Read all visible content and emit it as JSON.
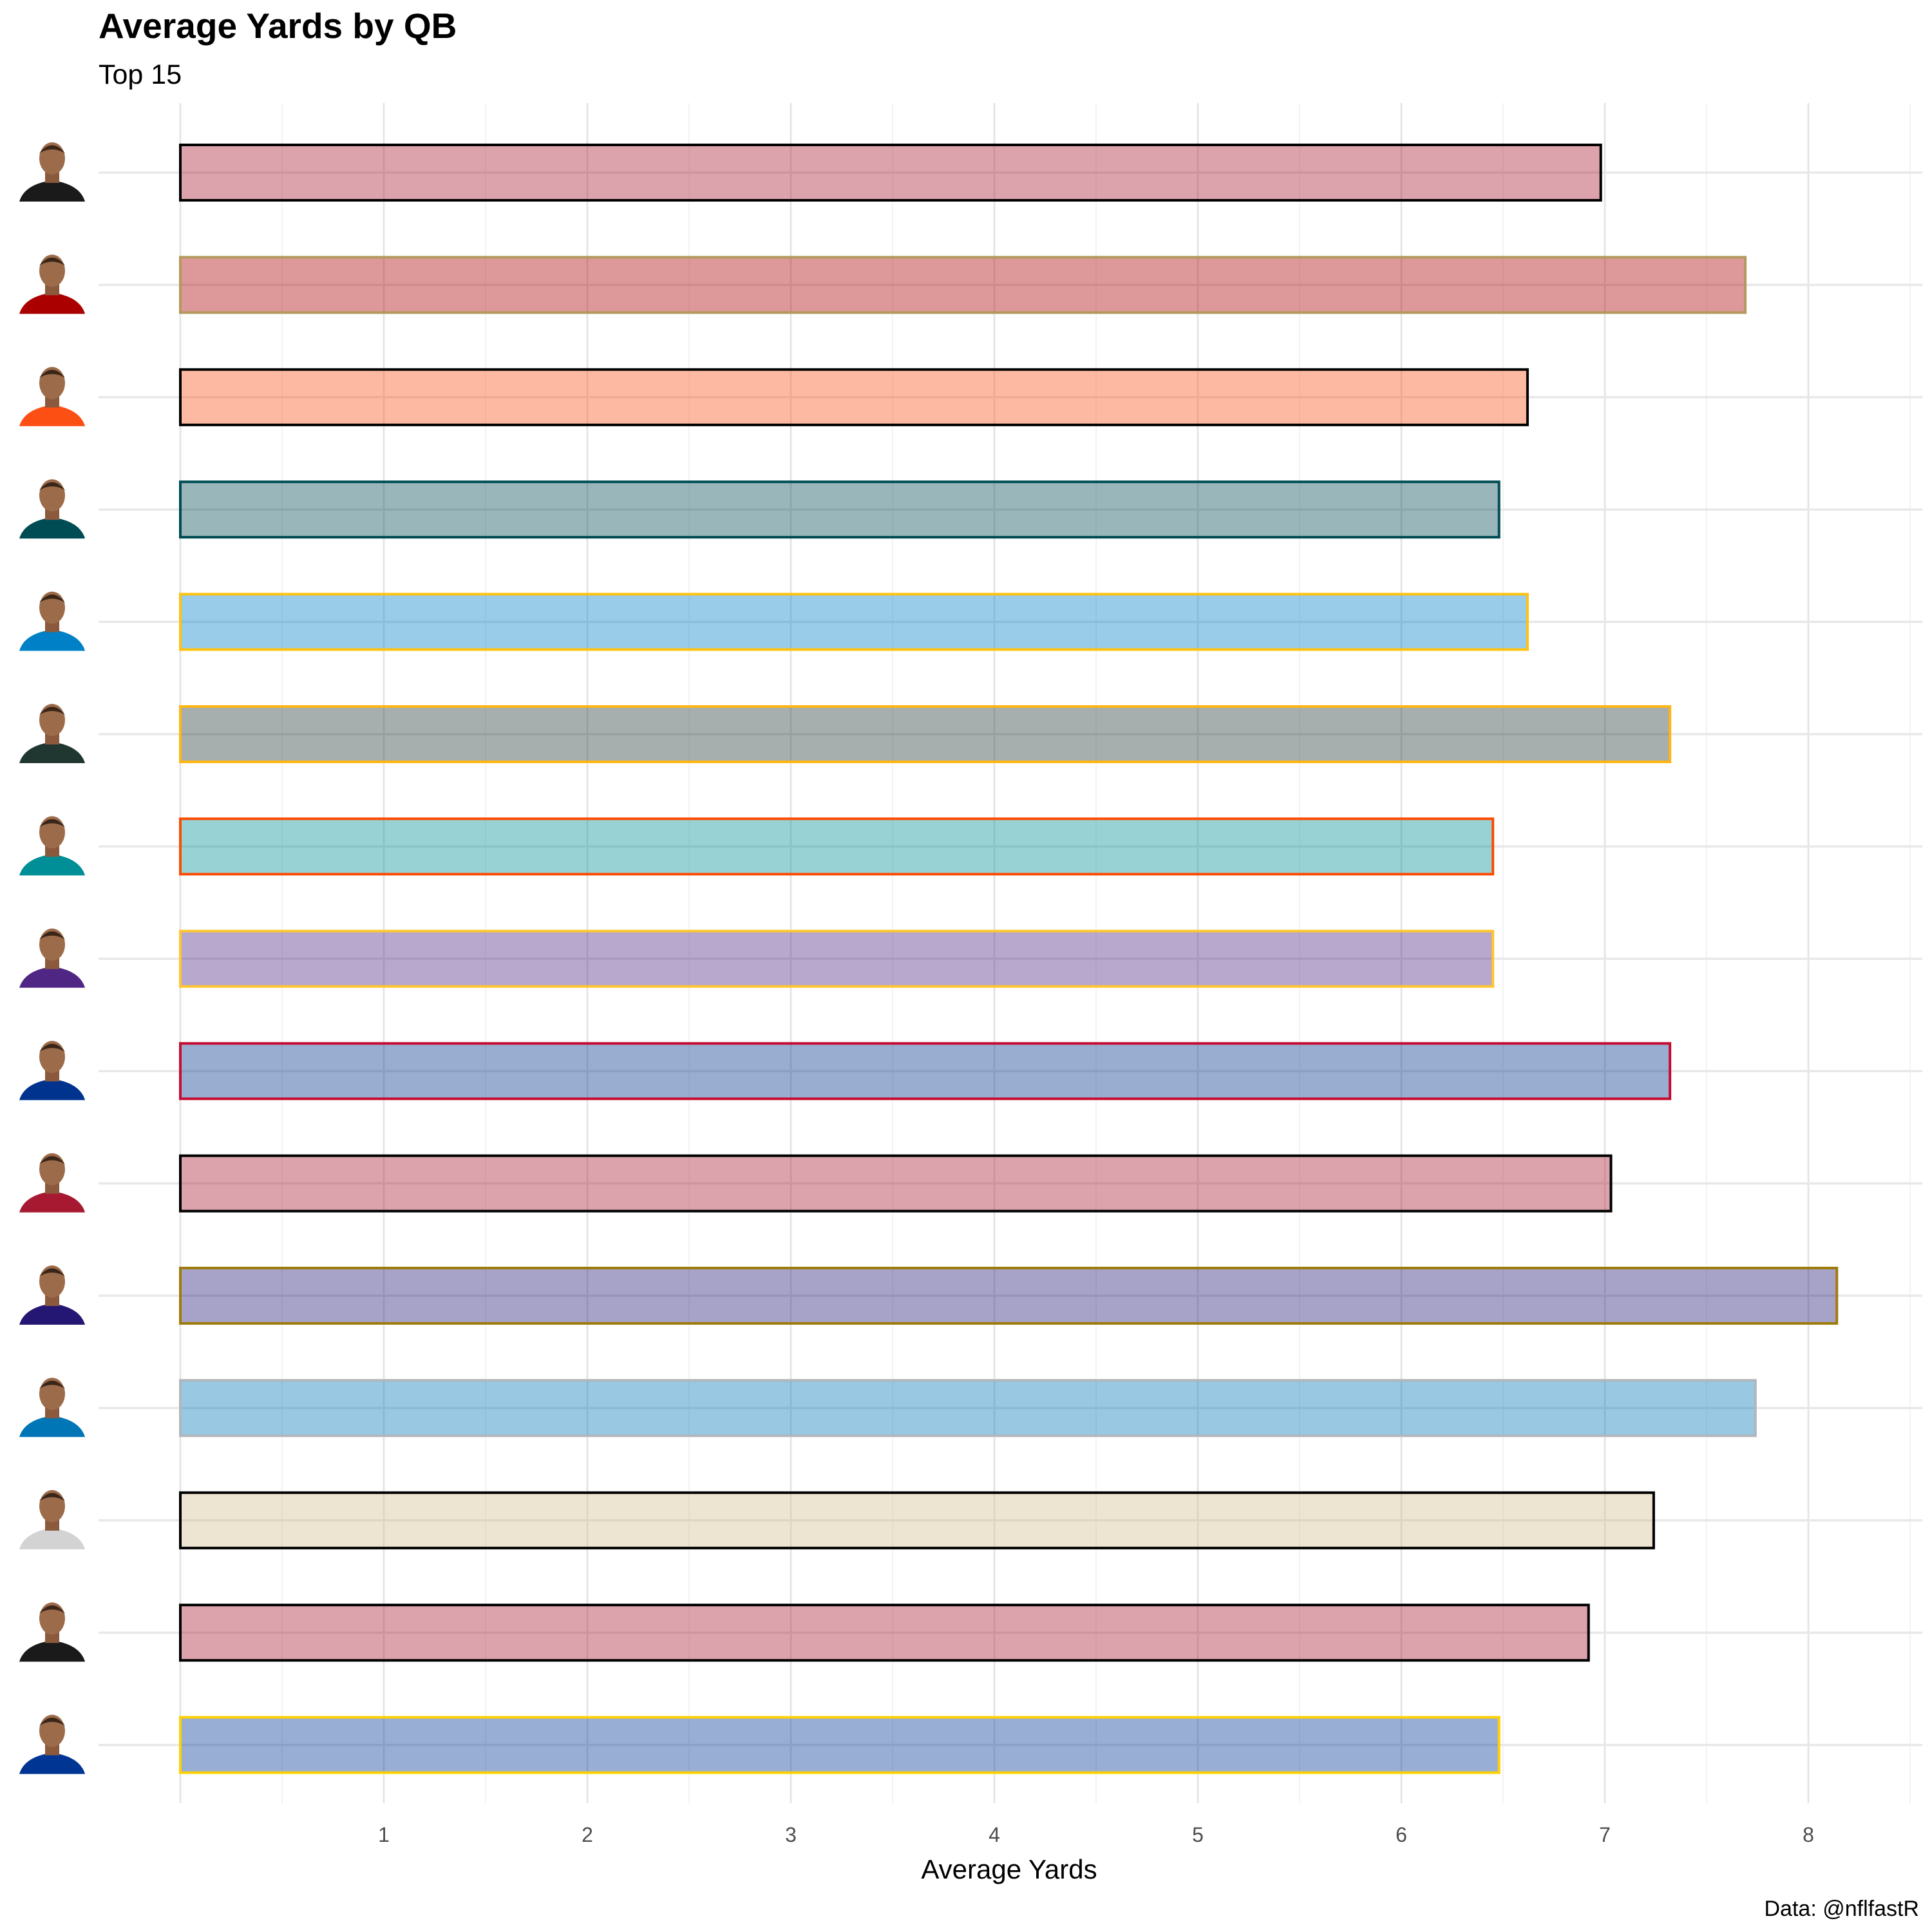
{
  "chart_data": {
    "type": "bar",
    "orientation": "horizontal",
    "title": "Average Yards by QB",
    "subtitle": "Top 15",
    "xlabel": "Average Yards",
    "ylabel": "",
    "caption": "Data: @nflfastR",
    "xlim": [
      -0.8,
      8.5
    ],
    "x_ticks": [
      1,
      2,
      3,
      4,
      5,
      6,
      7,
      8
    ],
    "grid": true,
    "legend": "none",
    "bar_opacity": 0.4,
    "bars": [
      {
        "value": 6.98,
        "fill": "#a71930",
        "border": "#000000",
        "jersey": "#1a1a1a"
      },
      {
        "value": 7.69,
        "fill": "#aa0000",
        "border": "#b3995d",
        "jersey": "#aa0000"
      },
      {
        "value": 6.62,
        "fill": "#fb4f14",
        "border": "#000000",
        "jersey": "#fb4f14"
      },
      {
        "value": 6.48,
        "fill": "#004c54",
        "border": "#004c54",
        "jersey": "#004c54"
      },
      {
        "value": 6.62,
        "fill": "#0080c6",
        "border": "#ffc20e",
        "jersey": "#0080c6"
      },
      {
        "value": 7.32,
        "fill": "#203731",
        "border": "#ffb612",
        "jersey": "#203731"
      },
      {
        "value": 6.45,
        "fill": "#008e97",
        "border": "#fc4c02",
        "jersey": "#008e97"
      },
      {
        "value": 6.45,
        "fill": "#4f2683",
        "border": "#ffc62f",
        "jersey": "#4f2683"
      },
      {
        "value": 7.32,
        "fill": "#00338d",
        "border": "#c60c30",
        "jersey": "#00338d"
      },
      {
        "value": 7.03,
        "fill": "#a71930",
        "border": "#000000",
        "jersey": "#a71930"
      },
      {
        "value": 8.14,
        "fill": "#241773",
        "border": "#9e7c0c",
        "jersey": "#241773"
      },
      {
        "value": 7.74,
        "fill": "#0076b6",
        "border": "#b0b7bc",
        "jersey": "#0076b6"
      },
      {
        "value": 7.24,
        "fill": "#d3bc8d",
        "border": "#000000",
        "jersey": "#d3d3d3"
      },
      {
        "value": 6.92,
        "fill": "#a71930",
        "border": "#000000",
        "jersey": "#1a1a1a"
      },
      {
        "value": 6.48,
        "fill": "#003594",
        "border": "#ffd100",
        "jersey": "#003594"
      }
    ]
  }
}
